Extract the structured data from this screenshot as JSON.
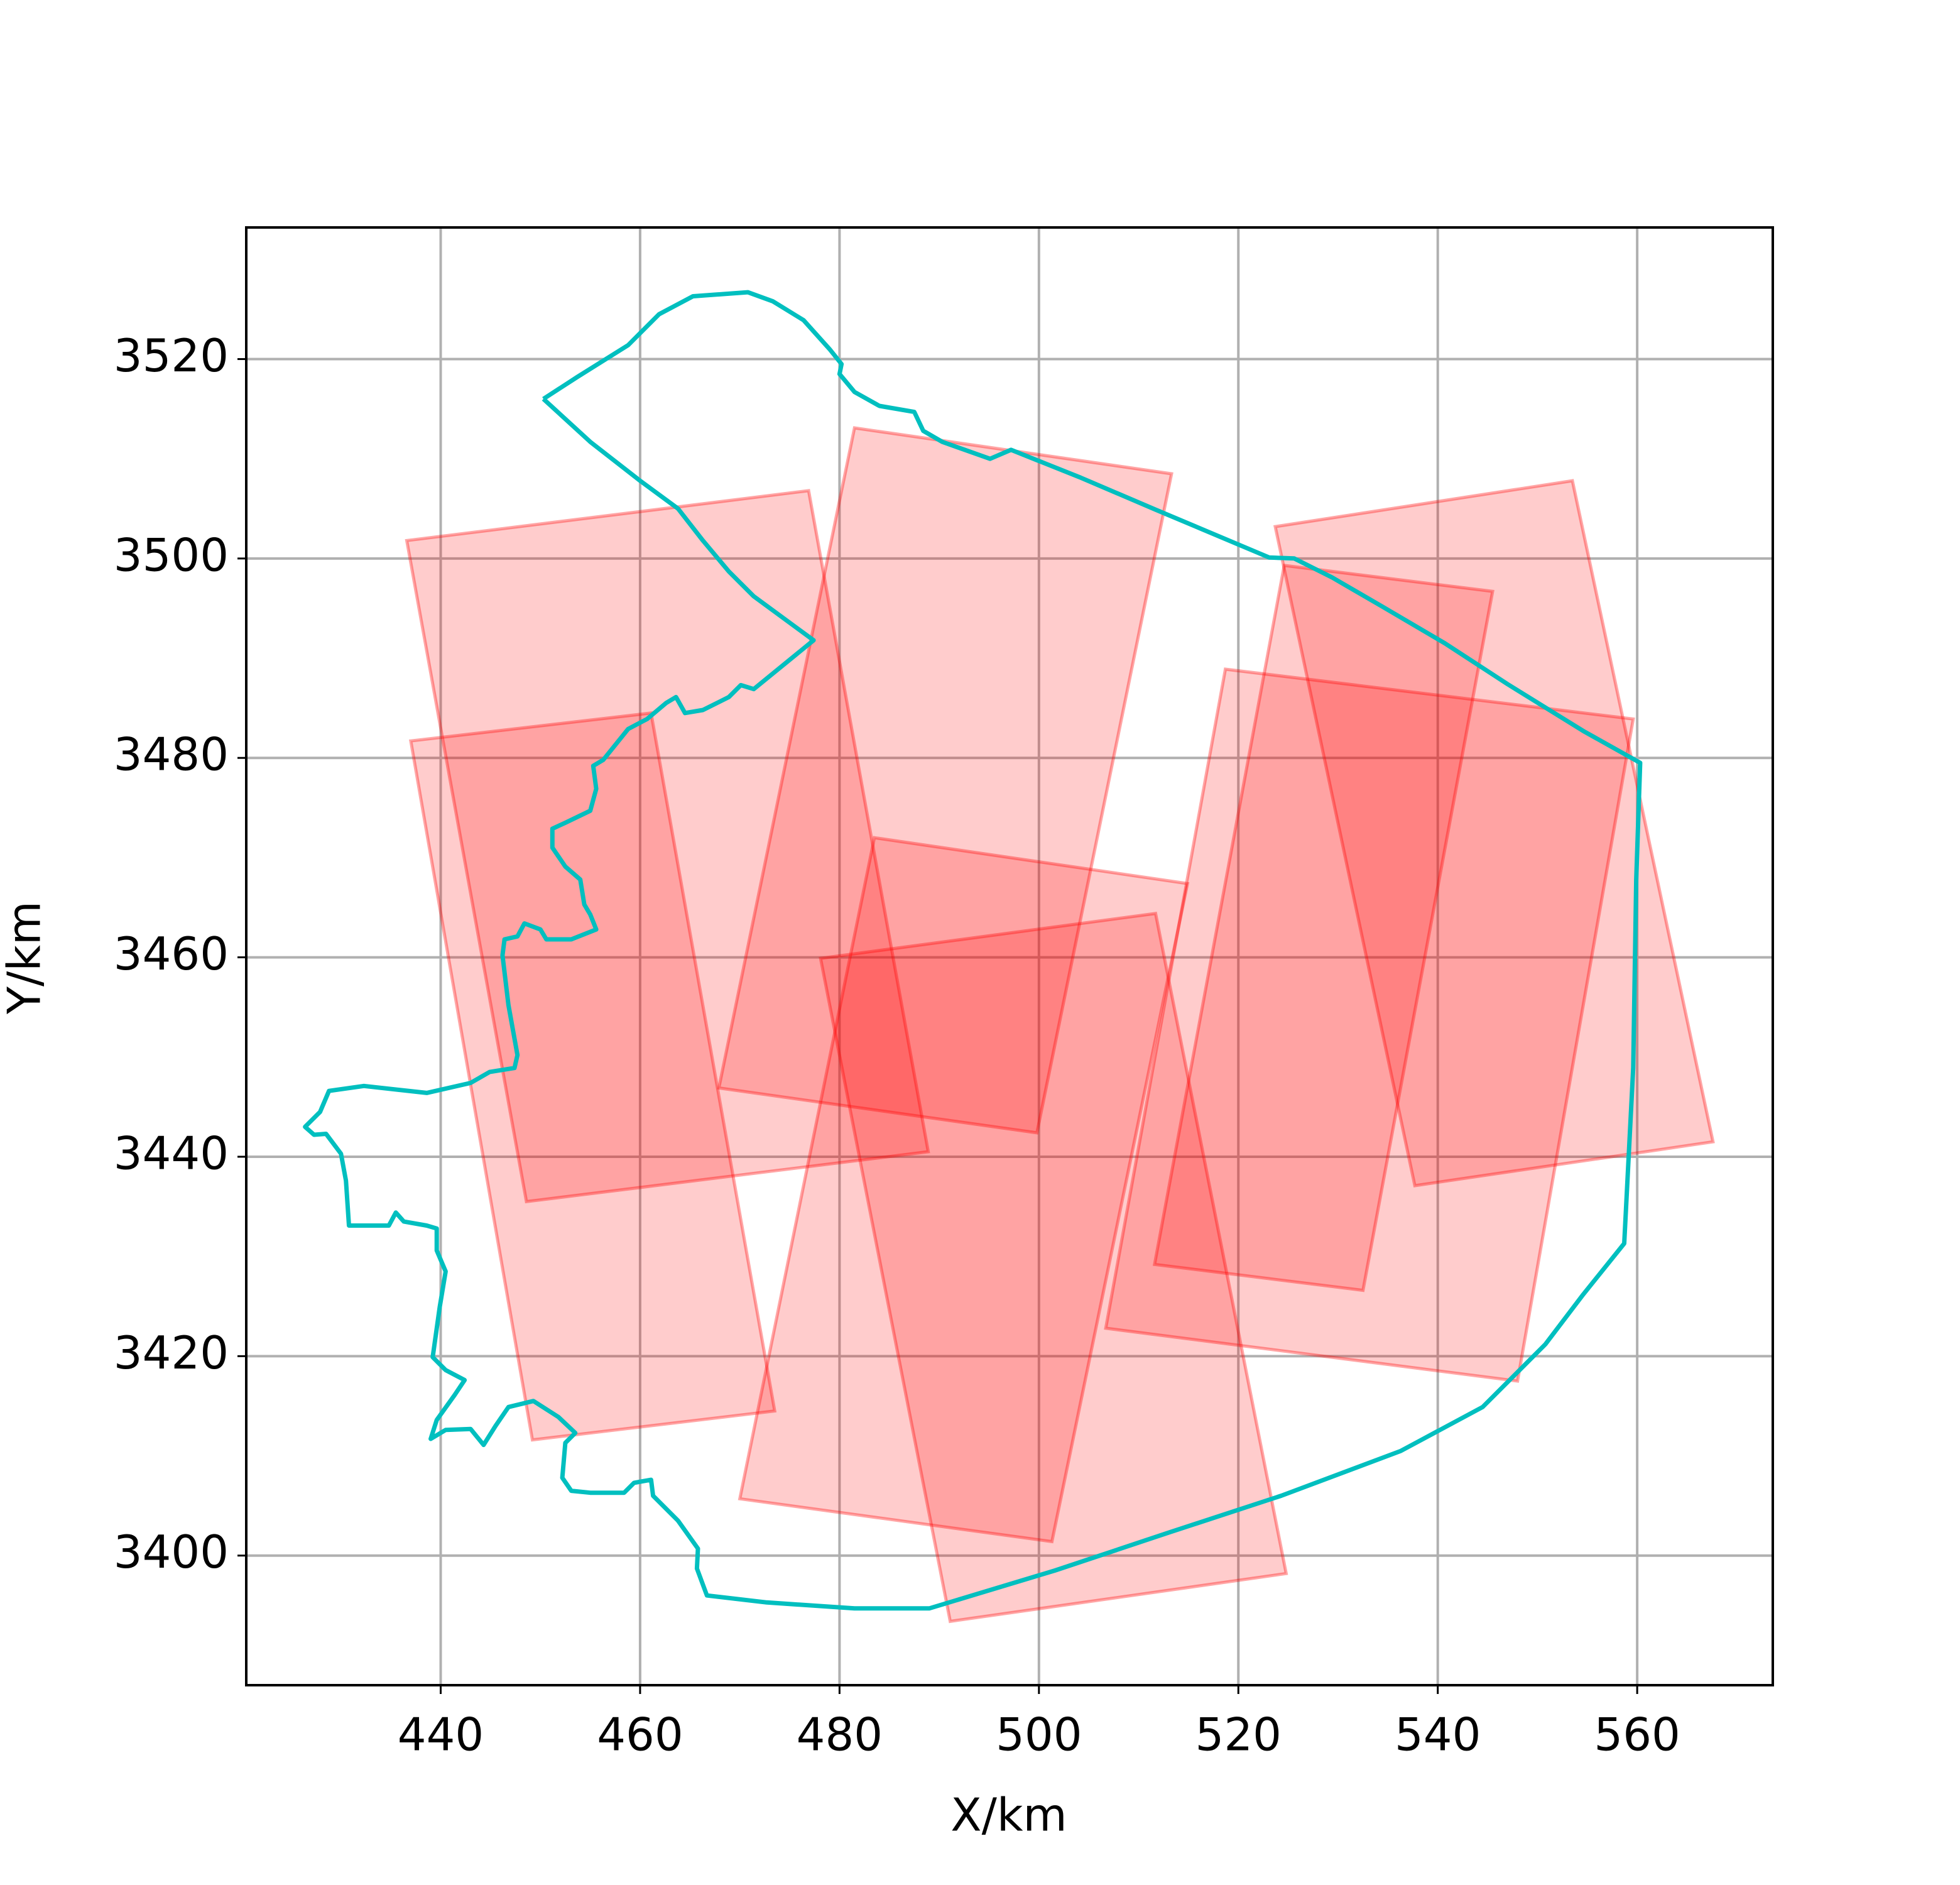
{
  "chart_data": {
    "type": "polygon",
    "xlabel": "X/km",
    "ylabel": "Y/km",
    "xlim": [
      420.5,
      573.6
    ],
    "ylim": [
      3387.0,
      3533.2
    ],
    "xticks": [
      440,
      460,
      480,
      500,
      520,
      540,
      560
    ],
    "yticks": [
      3400,
      3420,
      3440,
      3460,
      3480,
      3500,
      3520
    ],
    "grid": true,
    "shape_color": "#ff0000",
    "shapes": [
      {
        "x": [
          436.6,
          476.9,
          488.9,
          448.6
        ],
        "y": [
          3501.8,
          3506.8,
          3440.5,
          3435.5
        ]
      },
      {
        "x": [
          437.0,
          461.1,
          473.5,
          449.2
        ],
        "y": [
          3481.7,
          3484.5,
          3414.5,
          3411.6
        ]
      },
      {
        "x": [
          481.5,
          513.3,
          499.8,
          467.9
        ],
        "y": [
          3513.1,
          3508.5,
          3442.4,
          3446.9
        ]
      },
      {
        "x": [
          483.5,
          514.9,
          501.3,
          470.0
        ],
        "y": [
          3472.0,
          3467.4,
          3401.4,
          3405.7
        ]
      },
      {
        "x": [
          478.1,
          511.7,
          524.8,
          491.1
        ],
        "y": [
          3459.9,
          3464.4,
          3398.2,
          3393.4
        ]
      },
      {
        "x": [
          523.7,
          553.5,
          567.6,
          537.7
        ],
        "y": [
          3503.2,
          3507.8,
          3441.5,
          3437.1
        ]
      },
      {
        "x": [
          524.6,
          545.5,
          532.5,
          511.6
        ],
        "y": [
          3499.3,
          3496.7,
          3426.6,
          3429.2
        ]
      },
      {
        "x": [
          518.7,
          559.6,
          548.0,
          506.7
        ],
        "y": [
          3488.9,
          3483.9,
          3417.5,
          3422.8
        ]
      }
    ],
    "boundary": {
      "color": "#00bfbf",
      "x": [
        450.3,
        453.7,
        458.8,
        461.9,
        465.3,
        470.8,
        473.3,
        476.4,
        479.0,
        480.2,
        480.0,
        481.5,
        484.0,
        487.5,
        488.4,
        490.3,
        495.1,
        497.2,
        504.2,
        511.7,
        523.1,
        525.6,
        529.4,
        534.4,
        540.7,
        547.0,
        554.6,
        560.3,
        559.9,
        559.6,
        558.7,
        554.6,
        550.8,
        544.5,
        536.3,
        524.3,
        513.0,
        501.6,
        489.0,
        481.5,
        472.7,
        466.7,
        465.7,
        465.8,
        463.8,
        461.3,
        461.1,
        459.4,
        458.4,
        455.0,
        453.1,
        452.2,
        452.5,
        453.5,
        451.8,
        449.3,
        446.8,
        445.5,
        444.3,
        443.0,
        440.5,
        439.0,
        439.6,
        441.4,
        442.4,
        440.5,
        439.2,
        439.9,
        440.5,
        439.6,
        439.6,
        438.6,
        436.3,
        435.5,
        434.8,
        430.8,
        430.5,
        430.0,
        428.5,
        427.3,
        426.4,
        427.9,
        428.8,
        432.3,
        438.6,
        443.0,
        444.9,
        447.4,
        447.7,
        446.8,
        446.2,
        446.4,
        447.7,
        448.4,
        450.0,
        450.6,
        453.1,
        455.6,
        455.0,
        454.4,
        454.0,
        452.5,
        451.2,
        451.2,
        452.5,
        455.0,
        455.6,
        455.3,
        456.3,
        458.8,
        460.7,
        462.6,
        463.6,
        464.5,
        466.3,
        468.9,
        470.1,
        471.4,
        477.4,
        471.4,
        468.9,
        466.3,
        463.8,
        460.0,
        455.0,
        450.3
      ],
      "y": [
        3516.0,
        3518.2,
        3521.4,
        3524.5,
        3526.3,
        3526.7,
        3525.8,
        3523.9,
        3521.0,
        3519.5,
        3518.5,
        3516.7,
        3515.3,
        3514.7,
        3512.8,
        3511.7,
        3510.0,
        3510.9,
        3508.1,
        3504.9,
        3500.1,
        3500.0,
        3498.1,
        3495.2,
        3491.5,
        3487.4,
        3482.7,
        3479.5,
        3467.8,
        3448.9,
        3431.3,
        3426.2,
        3421.2,
        3414.9,
        3410.5,
        3406.0,
        3402.3,
        3398.5,
        3394.7,
        3394.7,
        3395.3,
        3396.0,
        3398.7,
        3400.7,
        3403.5,
        3406.0,
        3407.6,
        3407.3,
        3406.3,
        3406.3,
        3406.5,
        3407.8,
        3411.3,
        3412.3,
        3413.9,
        3415.5,
        3414.9,
        3413.0,
        3411.1,
        3412.7,
        3412.6,
        3411.7,
        3413.6,
        3416.1,
        3417.6,
        3418.6,
        3419.9,
        3424.9,
        3428.5,
        3430.6,
        3432.8,
        3433.1,
        3433.5,
        3434.4,
        3433.1,
        3433.1,
        3437.6,
        3440.3,
        3442.3,
        3442.2,
        3443.0,
        3444.5,
        3446.6,
        3447.1,
        3446.4,
        3447.4,
        3448.5,
        3448.9,
        3450.2,
        3455.2,
        3460.2,
        3461.8,
        3462.1,
        3463.4,
        3462.8,
        3461.8,
        3461.8,
        3462.8,
        3464.3,
        3465.3,
        3467.8,
        3469.1,
        3471.0,
        3472.9,
        3473.5,
        3474.7,
        3476.9,
        3479.2,
        3479.8,
        3482.9,
        3483.9,
        3485.5,
        3486.1,
        3484.5,
        3484.8,
        3486.1,
        3487.3,
        3486.9,
        3491.8,
        3496.2,
        3498.7,
        3501.8,
        3505.0,
        3507.8,
        3511.7,
        3516.0
      ]
    }
  }
}
